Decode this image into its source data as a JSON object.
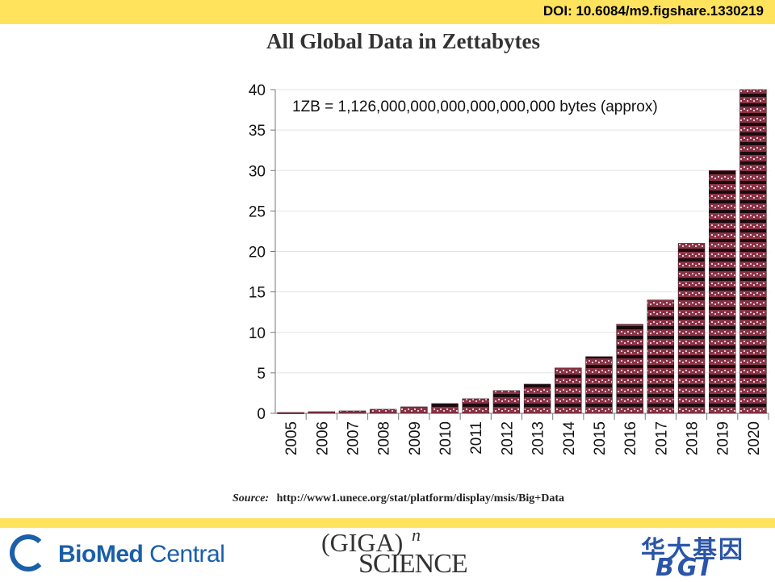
{
  "header": {
    "doi": "DOI: 10.6084/m9.figshare.1330219"
  },
  "chart_data": {
    "type": "bar",
    "title": "All Global Data in Zettabytes",
    "annotation": "1ZB = 1,126,000,000,000,000,000,000  bytes (approx)",
    "categories": [
      "2005",
      "2006",
      "2007",
      "2008",
      "2009",
      "2010",
      "2011",
      "2012",
      "2013",
      "2014",
      "2015",
      "2016",
      "2017",
      "2018",
      "2019",
      "2020"
    ],
    "values": [
      0.1,
      0.2,
      0.3,
      0.5,
      0.8,
      1.2,
      1.8,
      2.8,
      3.6,
      5.6,
      7,
      11,
      14,
      21,
      30,
      40
    ],
    "yticks": [
      "0",
      "5",
      "10",
      "15",
      "20",
      "25",
      "30",
      "35",
      "40"
    ],
    "ylim": [
      0,
      40
    ],
    "xlabel": "",
    "ylabel": "",
    "grid": true,
    "bar_color": "#8a3346",
    "bar_dark_color": "#1a0a0e"
  },
  "source": {
    "label": "Source:",
    "url": "http://www1.unece.org/stat/platform/display/msis/Big+Data"
  },
  "footer": {
    "biomed_bold": "BioMed",
    "biomed_light": " Central",
    "giga_line1": "(GIGA)",
    "giga_sup": "n",
    "giga_line2": "SCIENCE",
    "bgi_cn": "华大基因",
    "bgi_en": "BGI"
  }
}
